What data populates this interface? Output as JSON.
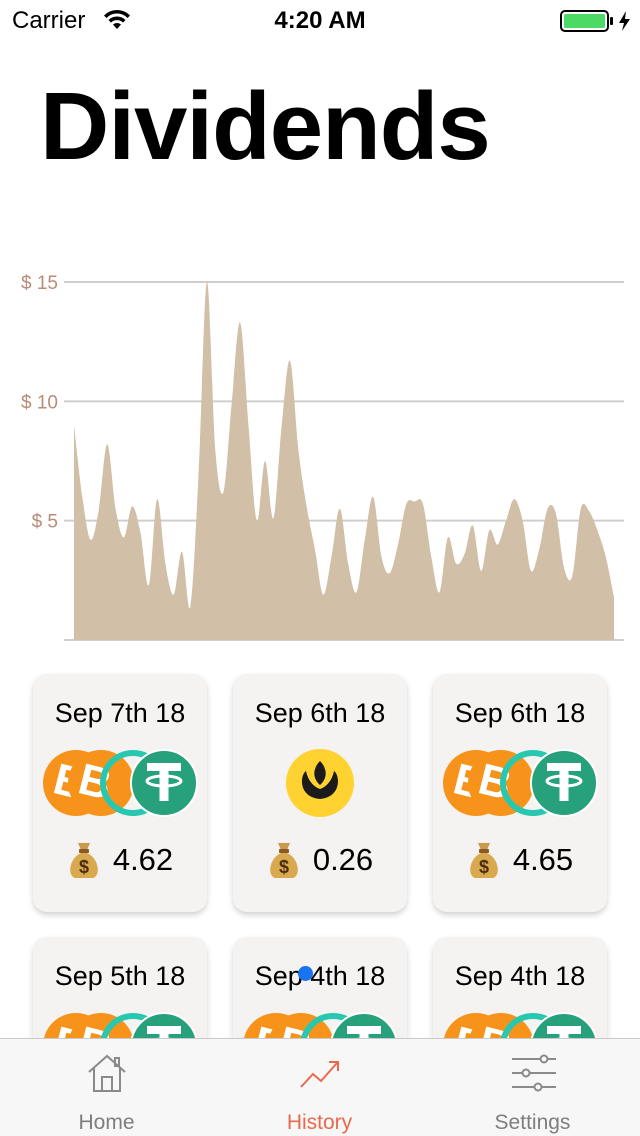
{
  "status_bar": {
    "carrier": "Carrier",
    "time": "4:20 AM"
  },
  "title": "Dividends",
  "chart_data": {
    "type": "area",
    "title": "",
    "xlabel": "",
    "ylabel": "",
    "y_tick_labels": [
      "$ 15",
      "$ 10",
      "$ 5"
    ],
    "y_ticks": [
      15,
      10,
      5
    ],
    "ylim": [
      0,
      15
    ],
    "grid": true,
    "color": "#d1bfa7",
    "values": [
      9.0,
      6.0,
      4.2,
      5.5,
      8.2,
      5.5,
      4.3,
      5.6,
      4.5,
      2.3,
      5.9,
      3.2,
      1.9,
      3.7,
      1.4,
      7.0,
      15.0,
      8.0,
      6.2,
      10.0,
      13.3,
      9.0,
      5.0,
      7.5,
      5.1,
      9.0,
      11.7,
      8.0,
      5.6,
      3.8,
      1.9,
      3.5,
      5.5,
      3.2,
      2.0,
      4.2,
      6.0,
      3.5,
      2.8,
      4.0,
      5.7,
      5.8,
      5.7,
      3.5,
      2.0,
      4.3,
      3.2,
      3.6,
      4.8,
      2.9,
      4.6,
      4.0,
      5.0,
      5.9,
      5.0,
      2.9,
      3.8,
      5.5,
      5.3,
      3.0,
      2.7,
      5.5,
      5.4,
      4.6,
      3.5,
      1.8
    ]
  },
  "cards": [
    {
      "date": "Sep 7th 18",
      "coins": [
        "btc",
        "btc",
        "coin-teal",
        "usdt"
      ],
      "amount": "4.62"
    },
    {
      "date": "Sep 6th 18",
      "coins": [
        "tulip"
      ],
      "amount": "0.26"
    },
    {
      "date": "Sep 6th 18",
      "coins": [
        "btc",
        "btc",
        "coin-teal",
        "usdt"
      ],
      "amount": "4.65"
    },
    {
      "date": "Sep 5th 18",
      "coins": [
        "btc",
        "btc",
        "coin-teal",
        "usdt"
      ],
      "amount": ""
    },
    {
      "date": "Sep 4th 18",
      "coins": [
        "btc",
        "btc",
        "coin-teal",
        "usdt"
      ],
      "amount": ""
    },
    {
      "date": "Sep 4th 18",
      "coins": [
        "btc",
        "btc",
        "coin-teal",
        "usdt"
      ],
      "amount": ""
    }
  ],
  "colors": {
    "accent": "#e86a4e",
    "btc": "#f7931a",
    "usdt": "#26a17b",
    "teal": "#27c7b0",
    "tulip": "#fed230"
  },
  "tabs": [
    {
      "label": "Home",
      "icon": "house-icon",
      "active": false
    },
    {
      "label": "History",
      "icon": "trend-icon",
      "active": true
    },
    {
      "label": "Settings",
      "icon": "sliders-icon",
      "active": false
    }
  ]
}
